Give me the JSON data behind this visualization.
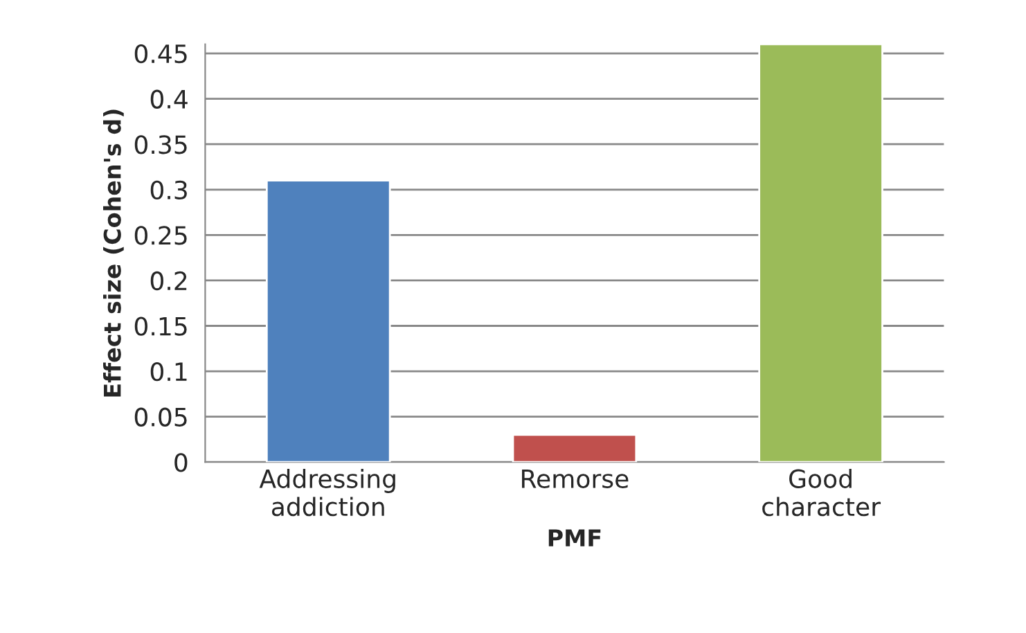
{
  "chart_data": {
    "type": "bar",
    "xlabel": "PMF",
    "ylabel": "Effect size (Cohen's d)",
    "categories": [
      "Addressing\naddiction",
      "Remorse",
      "Good\ncharacter"
    ],
    "values": [
      0.31,
      0.03,
      0.46
    ],
    "colors": [
      "#4f81bd",
      "#c0504d",
      "#9bbb59"
    ],
    "ylim": [
      0,
      0.46
    ],
    "yticks": [
      0,
      {
        "value": 0.05,
        "label": "0.05"
      },
      {
        "value": 0.1,
        "label": "0.1"
      },
      {
        "value": 0.15,
        "label": "0.15"
      },
      {
        "value": 0.2,
        "label": "0.2"
      },
      {
        "value": 0.25,
        "label": "0.25"
      },
      {
        "value": 0.3,
        "label": "0.3"
      },
      {
        "value": 0.35,
        "label": "0.35"
      },
      {
        "value": 0.4,
        "label": "0.4"
      },
      {
        "value": 0.45,
        "label": "0.45"
      }
    ],
    "grid": "y",
    "legend": false
  }
}
